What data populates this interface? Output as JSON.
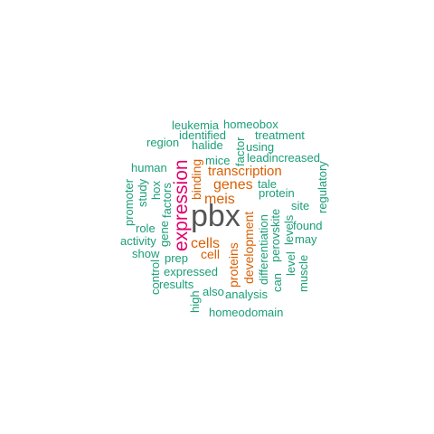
{
  "words": [
    {
      "text": "pbx",
      "color": "#555555",
      "tier": 1
    },
    {
      "text": "expression",
      "color": "#e0006e",
      "tier": 2
    },
    {
      "text": "cells",
      "color": "#d95f02",
      "tier": 3
    },
    {
      "text": "genes",
      "color": "#d95f02",
      "tier": 3
    },
    {
      "text": "meis",
      "color": "#d95f02",
      "tier": 3
    },
    {
      "text": "transcription",
      "color": "#d95f02",
      "tier": 3
    },
    {
      "text": "binding",
      "color": "#d95f02",
      "tier": 3
    },
    {
      "text": "proteins",
      "color": "#d95f02",
      "tier": 3
    },
    {
      "text": "development",
      "color": "#d95f02",
      "tier": 3
    },
    {
      "text": "cell",
      "color": "#d95f02",
      "tier": 3
    },
    {
      "text": "leukemia",
      "color": "#1b9e77",
      "tier": 4
    },
    {
      "text": "homeobox",
      "color": "#1b9e77",
      "tier": 4
    },
    {
      "text": "identified",
      "color": "#1b9e77",
      "tier": 4
    },
    {
      "text": "treatment",
      "color": "#1b9e77",
      "tier": 4
    },
    {
      "text": "region",
      "color": "#1b9e77",
      "tier": 4
    },
    {
      "text": "halide",
      "color": "#1b9e77",
      "tier": 4
    },
    {
      "text": "factor",
      "color": "#1b9e77",
      "tier": 4
    },
    {
      "text": "using",
      "color": "#1b9e77",
      "tier": 4
    },
    {
      "text": "mice",
      "color": "#1b9e77",
      "tier": 4
    },
    {
      "text": "leadincreased",
      "color": "#1b9e77",
      "tier": 4
    },
    {
      "text": "human",
      "color": "#1b9e77",
      "tier": 4
    },
    {
      "text": "regulatory",
      "color": "#1b9e77",
      "tier": 4
    },
    {
      "text": "tale",
      "color": "#1b9e77",
      "tier": 4
    },
    {
      "text": "protein",
      "color": "#1b9e77",
      "tier": 4
    },
    {
      "text": "promoter",
      "color": "#1b9e77",
      "tier": 4
    },
    {
      "text": "study",
      "color": "#1b9e77",
      "tier": 4
    },
    {
      "text": "hox",
      "color": "#1b9e77",
      "tier": 4
    },
    {
      "text": "factors",
      "color": "#1b9e77",
      "tier": 4
    },
    {
      "text": "site",
      "color": "#1b9e77",
      "tier": 4
    },
    {
      "text": "perovskite",
      "color": "#1b9e77",
      "tier": 4
    },
    {
      "text": "levels",
      "color": "#1b9e77",
      "tier": 4
    },
    {
      "text": "found",
      "color": "#1b9e77",
      "tier": 4
    },
    {
      "text": "role",
      "color": "#1b9e77",
      "tier": 4
    },
    {
      "text": "gene",
      "color": "#1b9e77",
      "tier": 4
    },
    {
      "text": "may",
      "color": "#1b9e77",
      "tier": 4
    },
    {
      "text": "activity",
      "color": "#1b9e77",
      "tier": 4
    },
    {
      "text": "show",
      "color": "#1b9e77",
      "tier": 4
    },
    {
      "text": "prep",
      "color": "#1b9e77",
      "tier": 4
    },
    {
      "text": "differentiation",
      "color": "#1b9e77",
      "tier": 4
    },
    {
      "text": "can",
      "color": "#1b9e77",
      "tier": 4
    },
    {
      "text": "level",
      "color": "#1b9e77",
      "tier": 4
    },
    {
      "text": "expressed",
      "color": "#1b9e77",
      "tier": 4
    },
    {
      "text": "control",
      "color": "#1b9e77",
      "tier": 4
    },
    {
      "text": "muscle",
      "color": "#1b9e77",
      "tier": 4
    },
    {
      "text": "results",
      "color": "#1b9e77",
      "tier": 4
    },
    {
      "text": "also",
      "color": "#1b9e77",
      "tier": 4
    },
    {
      "text": "analysis",
      "color": "#1b9e77",
      "tier": 4
    },
    {
      "text": "high",
      "color": "#1b9e77",
      "tier": 4
    },
    {
      "text": "homeodomain",
      "color": "#1b9e77",
      "tier": 4
    }
  ]
}
